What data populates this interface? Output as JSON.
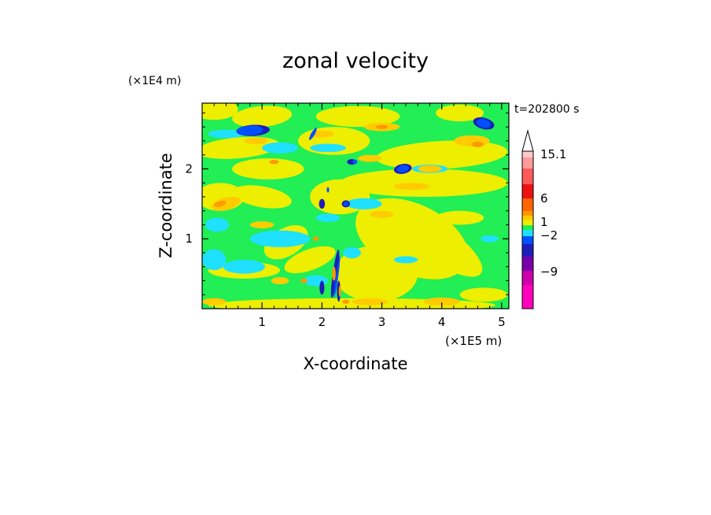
{
  "chart_data": {
    "type": "heatmap",
    "title": "zonal velocity",
    "time_label": "t=202800 s",
    "xlabel": "X-coordinate",
    "ylabel": "Z-coordinate",
    "x_multiplier": "(×1E5 m)",
    "y_multiplier": "(×1E4 m)",
    "x_ticks": [
      "1",
      "2",
      "3",
      "4",
      "5"
    ],
    "y_ticks": [
      "1",
      "2"
    ],
    "xlim": [
      0,
      5.12
    ],
    "ylim": [
      0,
      2.94
    ],
    "colorbar": {
      "labels": [
        "15.1",
        "6",
        "1",
        "−2",
        "−9"
      ],
      "colors": [
        "#ff00bb",
        "#cc00aa",
        "#7a00aa",
        "#1e1eb8",
        "#0050ff",
        "#20e0ff",
        "#22ee55",
        "#eeee00",
        "#ffcc00",
        "#ff9900",
        "#ff6600",
        "#ee1111",
        "#ff5a5a",
        "#ff9a9a",
        "#ffcaca"
      ],
      "extend_max": true
    },
    "background_color": "#22ee55",
    "regions": [
      {
        "level": 7,
        "x": 0.2,
        "y": 2.85,
        "rx": 0.4,
        "ry": 0.15,
        "rot": 0
      },
      {
        "level": 7,
        "x": 1.0,
        "y": 2.75,
        "rx": 0.5,
        "ry": 0.15,
        "rot": -5
      },
      {
        "level": 7,
        "x": 2.6,
        "y": 2.75,
        "rx": 0.7,
        "ry": 0.15,
        "rot": 0
      },
      {
        "level": 7,
        "x": 4.3,
        "y": 2.8,
        "rx": 0.4,
        "ry": 0.12,
        "rot": 0
      },
      {
        "level": 7,
        "x": 0.6,
        "y": 2.3,
        "rx": 0.7,
        "ry": 0.15,
        "rot": -5
      },
      {
        "level": 7,
        "x": 2.2,
        "y": 2.4,
        "rx": 0.6,
        "ry": 0.2,
        "rot": 0
      },
      {
        "level": 7,
        "x": 4.0,
        "y": 2.2,
        "rx": 1.1,
        "ry": 0.2,
        "rot": -3
      },
      {
        "level": 7,
        "x": 1.1,
        "y": 2.0,
        "rx": 0.6,
        "ry": 0.15,
        "rot": 0
      },
      {
        "level": 7,
        "x": 0.3,
        "y": 1.6,
        "rx": 0.4,
        "ry": 0.2,
        "rot": 0
      },
      {
        "level": 7,
        "x": 1.0,
        "y": 1.6,
        "rx": 0.5,
        "ry": 0.15,
        "rot": 10
      },
      {
        "level": 7,
        "x": 2.3,
        "y": 1.6,
        "rx": 0.5,
        "ry": 0.25,
        "rot": 0
      },
      {
        "level": 7,
        "x": 3.7,
        "y": 1.8,
        "rx": 1.4,
        "ry": 0.2,
        "rot": 0
      },
      {
        "level": 7,
        "x": 3.5,
        "y": 1.0,
        "rx": 1.0,
        "ry": 0.5,
        "rot": 25
      },
      {
        "level": 7,
        "x": 4.0,
        "y": 0.9,
        "rx": 0.8,
        "ry": 0.25,
        "rot": 35
      },
      {
        "level": 7,
        "x": 2.9,
        "y": 0.5,
        "rx": 0.7,
        "ry": 0.4,
        "rot": 0
      },
      {
        "level": 7,
        "x": 1.4,
        "y": 0.95,
        "rx": 0.4,
        "ry": 0.2,
        "rot": -30
      },
      {
        "level": 7,
        "x": 1.8,
        "y": 0.7,
        "rx": 0.45,
        "ry": 0.15,
        "rot": -20
      },
      {
        "level": 7,
        "x": 0.7,
        "y": 0.55,
        "rx": 0.6,
        "ry": 0.12,
        "rot": 0
      },
      {
        "level": 7,
        "x": 2.5,
        "y": 0.05,
        "rx": 2.4,
        "ry": 0.1,
        "rot": 0
      },
      {
        "level": 7,
        "x": 4.7,
        "y": 0.2,
        "rx": 0.4,
        "ry": 0.1,
        "rot": 0
      },
      {
        "level": 7,
        "x": 4.3,
        "y": 1.3,
        "rx": 0.4,
        "ry": 0.1,
        "rot": 0
      },
      {
        "level": 5,
        "x": 0.2,
        "y": 0.7,
        "rx": 0.2,
        "ry": 0.15,
        "rot": 0
      },
      {
        "level": 5,
        "x": 0.7,
        "y": 0.6,
        "rx": 0.35,
        "ry": 0.1,
        "rot": 0
      },
      {
        "level": 5,
        "x": 0.25,
        "y": 1.2,
        "rx": 0.2,
        "ry": 0.1,
        "rot": 0
      },
      {
        "level": 5,
        "x": 1.3,
        "y": 1.0,
        "rx": 0.5,
        "ry": 0.12,
        "rot": 0
      },
      {
        "level": 5,
        "x": 1.3,
        "y": 2.3,
        "rx": 0.3,
        "ry": 0.08,
        "rot": 0
      },
      {
        "level": 5,
        "x": 0.4,
        "y": 2.5,
        "rx": 0.3,
        "ry": 0.06,
        "rot": 0
      },
      {
        "level": 5,
        "x": 2.1,
        "y": 2.3,
        "rx": 0.3,
        "ry": 0.06,
        "rot": 0
      },
      {
        "level": 5,
        "x": 2.7,
        "y": 1.5,
        "rx": 0.3,
        "ry": 0.08,
        "rot": 0
      },
      {
        "level": 5,
        "x": 2.5,
        "y": 0.8,
        "rx": 0.15,
        "ry": 0.08,
        "rot": 0
      },
      {
        "level": 5,
        "x": 3.4,
        "y": 0.7,
        "rx": 0.2,
        "ry": 0.05,
        "rot": 0
      },
      {
        "level": 5,
        "x": 1.9,
        "y": 0.4,
        "rx": 0.2,
        "ry": 0.08,
        "rot": 0
      },
      {
        "level": 5,
        "x": 2.1,
        "y": 1.3,
        "rx": 0.2,
        "ry": 0.06,
        "rot": 0
      },
      {
        "level": 5,
        "x": 4.8,
        "y": 1.0,
        "rx": 0.15,
        "ry": 0.05,
        "rot": 0
      },
      {
        "level": 5,
        "x": 3.8,
        "y": 2.0,
        "rx": 0.3,
        "ry": 0.06,
        "rot": 0
      },
      {
        "level": 3,
        "x": 0.85,
        "y": 2.55,
        "rx": 0.28,
        "ry": 0.08,
        "rot": -3
      },
      {
        "level": 3,
        "x": 4.7,
        "y": 2.65,
        "rx": 0.18,
        "ry": 0.08,
        "rot": 15
      },
      {
        "level": 3,
        "x": 3.35,
        "y": 2.0,
        "rx": 0.15,
        "ry": 0.07,
        "rot": -10
      },
      {
        "level": 3,
        "x": 2.5,
        "y": 2.1,
        "rx": 0.08,
        "ry": 0.04,
        "rot": 0
      },
      {
        "level": 3,
        "x": 2.4,
        "y": 1.5,
        "rx": 0.07,
        "ry": 0.05,
        "rot": 0
      },
      {
        "level": 3,
        "x": 2.22,
        "y": 0.5,
        "rx": 0.04,
        "ry": 0.35,
        "rot": 8
      },
      {
        "level": 3,
        "x": 2.28,
        "y": 0.25,
        "rx": 0.03,
        "ry": 0.15,
        "rot": 0
      },
      {
        "level": 3,
        "x": 2.0,
        "y": 0.3,
        "rx": 0.04,
        "ry": 0.1,
        "rot": 0
      },
      {
        "level": 3,
        "x": 2.0,
        "y": 1.5,
        "rx": 0.05,
        "ry": 0.07,
        "rot": 0
      },
      {
        "level": 8,
        "x": 0.4,
        "y": 1.5,
        "rx": 0.25,
        "ry": 0.09,
        "rot": -15
      },
      {
        "level": 8,
        "x": 0.9,
        "y": 2.4,
        "rx": 0.2,
        "ry": 0.05,
        "rot": 0
      },
      {
        "level": 8,
        "x": 2.0,
        "y": 2.5,
        "rx": 0.2,
        "ry": 0.05,
        "rot": 0
      },
      {
        "level": 8,
        "x": 3.0,
        "y": 2.6,
        "rx": 0.3,
        "ry": 0.06,
        "rot": 0
      },
      {
        "level": 8,
        "x": 4.5,
        "y": 2.4,
        "rx": 0.3,
        "ry": 0.08,
        "rot": 0
      },
      {
        "level": 8,
        "x": 2.8,
        "y": 2.15,
        "rx": 0.2,
        "ry": 0.05,
        "rot": 0
      },
      {
        "level": 8,
        "x": 3.8,
        "y": 2.0,
        "rx": 0.2,
        "ry": 0.05,
        "rot": 0
      },
      {
        "level": 8,
        "x": 1.0,
        "y": 1.2,
        "rx": 0.2,
        "ry": 0.05,
        "rot": 0
      },
      {
        "level": 8,
        "x": 3.0,
        "y": 1.35,
        "rx": 0.2,
        "ry": 0.05,
        "rot": 0
      },
      {
        "level": 8,
        "x": 4.0,
        "y": 0.1,
        "rx": 0.3,
        "ry": 0.06,
        "rot": 0
      },
      {
        "level": 8,
        "x": 1.3,
        "y": 0.4,
        "rx": 0.15,
        "ry": 0.05,
        "rot": 0
      },
      {
        "level": 8,
        "x": 3.5,
        "y": 1.75,
        "rx": 0.3,
        "ry": 0.05,
        "rot": 0
      },
      {
        "level": 8,
        "x": 0.2,
        "y": 0.1,
        "rx": 0.2,
        "ry": 0.05,
        "rot": 0
      },
      {
        "level": 8,
        "x": 2.8,
        "y": 0.1,
        "rx": 0.3,
        "ry": 0.05,
        "rot": 0
      },
      {
        "level": 9,
        "x": 0.3,
        "y": 1.5,
        "rx": 0.1,
        "ry": 0.04,
        "rot": -15
      },
      {
        "level": 9,
        "x": 4.6,
        "y": 2.35,
        "rx": 0.1,
        "ry": 0.04,
        "rot": 0
      },
      {
        "level": 9,
        "x": 3.0,
        "y": 2.6,
        "rx": 0.1,
        "ry": 0.03,
        "rot": 0
      },
      {
        "level": 9,
        "x": 2.2,
        "y": 0.5,
        "rx": 0.03,
        "ry": 0.1,
        "rot": 0
      },
      {
        "level": 9,
        "x": 2.3,
        "y": 0.25,
        "rx": 0.02,
        "ry": 0.08,
        "rot": 0
      },
      {
        "level": 9,
        "x": 1.7,
        "y": 0.4,
        "rx": 0.06,
        "ry": 0.03,
        "rot": 0
      },
      {
        "level": 9,
        "x": 1.2,
        "y": 2.1,
        "rx": 0.08,
        "ry": 0.03,
        "rot": 0
      },
      {
        "level": 9,
        "x": 2.4,
        "y": 0.1,
        "rx": 0.06,
        "ry": 0.03,
        "rot": 0
      },
      {
        "level": 9,
        "x": 1.9,
        "y": 1.0,
        "rx": 0.05,
        "ry": 0.03,
        "rot": 0
      },
      {
        "level": 4,
        "x": 0.8,
        "y": 2.55,
        "rx": 0.22,
        "ry": 0.07,
        "rot": -3
      },
      {
        "level": 4,
        "x": 4.7,
        "y": 2.65,
        "rx": 0.12,
        "ry": 0.06,
        "rot": 15
      },
      {
        "level": 4,
        "x": 3.35,
        "y": 2.0,
        "rx": 0.1,
        "ry": 0.05,
        "rot": -10
      },
      {
        "level": 4,
        "x": 2.25,
        "y": 0.45,
        "rx": 0.02,
        "ry": 0.3,
        "rot": 8
      },
      {
        "level": 4,
        "x": 2.4,
        "y": 1.5,
        "rx": 0.04,
        "ry": 0.03,
        "rot": 0
      },
      {
        "level": 4,
        "x": 1.85,
        "y": 2.5,
        "rx": 0.03,
        "ry": 0.1,
        "rot": 30
      },
      {
        "level": 4,
        "x": 2.55,
        "y": 2.1,
        "rx": 0.04,
        "ry": 0.03,
        "rot": 0
      },
      {
        "level": 4,
        "x": 2.1,
        "y": 1.7,
        "rx": 0.02,
        "ry": 0.04,
        "rot": 0
      }
    ]
  }
}
